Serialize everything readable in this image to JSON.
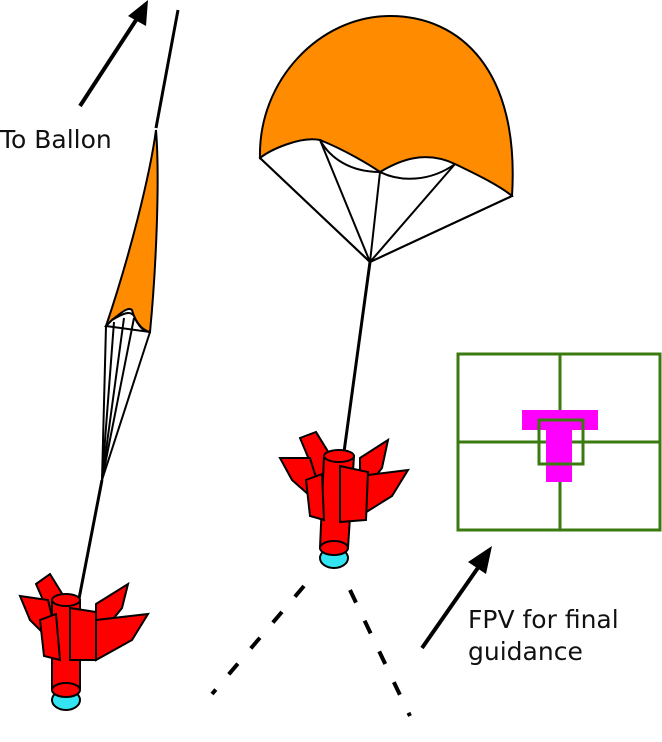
{
  "labels": {
    "balloon": "To Ballon",
    "fpv_line1": "FPV for final",
    "fpv_line2": "guidance"
  },
  "colors": {
    "canopy": "#FF8C00",
    "rocket_body": "#FF0000",
    "rocket_tip": "#33E5F0",
    "frame": "#3A7A10",
    "target": "#FF00FF",
    "line": "#000000"
  },
  "icons": {
    "rocket": "rocket-icon",
    "parachute": "parachute-icon",
    "target": "target-T-icon",
    "arrow": "arrow-icon"
  }
}
